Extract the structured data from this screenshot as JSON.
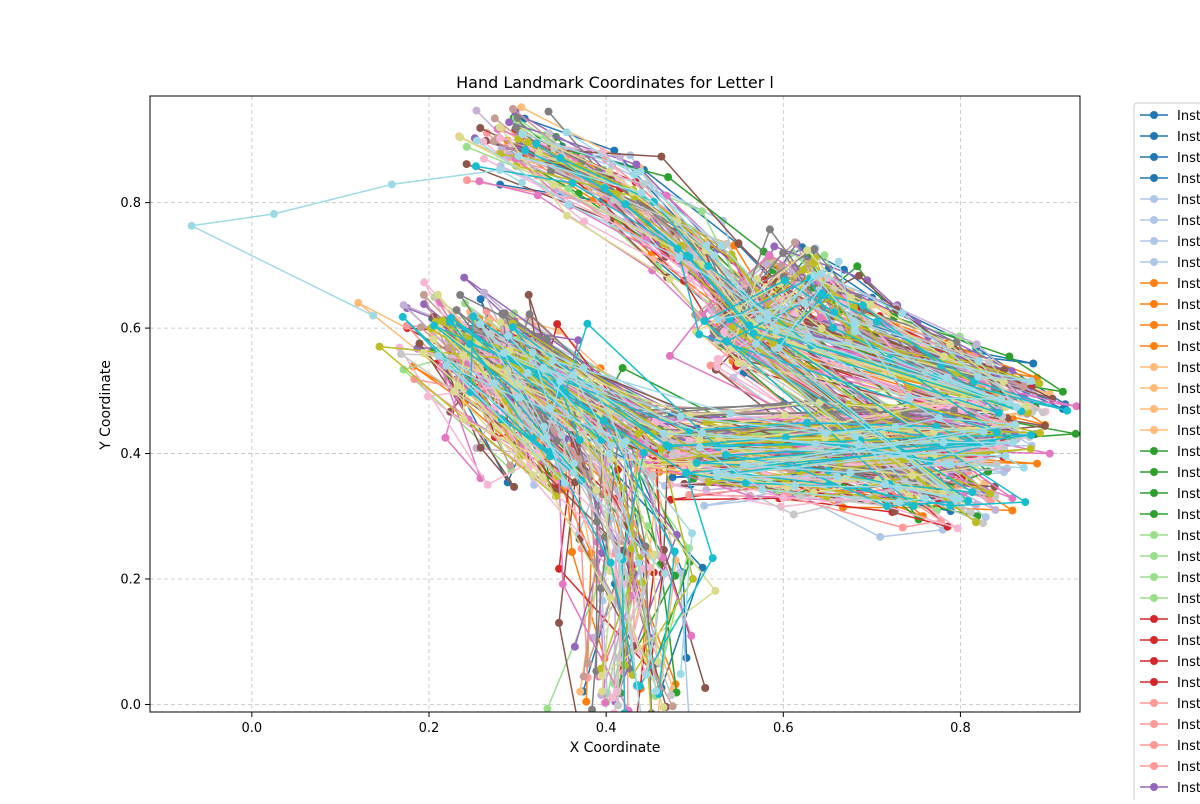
{
  "chart_data": {
    "type": "line",
    "title": "Hand Landmark Coordinates for Letter l",
    "xlabel": "X Coordinate",
    "ylabel": "Y Coordinate",
    "xlim": [
      -0.115,
      0.935
    ],
    "ylim": [
      -0.012,
      0.97
    ],
    "x_ticks": [
      0.0,
      0.2,
      0.4,
      0.6,
      0.8
    ],
    "y_ticks": [
      0.0,
      0.2,
      0.4,
      0.6,
      0.8
    ],
    "grid": true,
    "legend_placement": "outside-right",
    "legend_entry_prefix": "Inst",
    "color_cycle": [
      "#1f77b4",
      "#aec7e8",
      "#ff7f0e",
      "#ffbb78",
      "#2ca02c",
      "#98df8a",
      "#d62728",
      "#ff9896",
      "#9467bd",
      "#c5b0d5",
      "#8c564b",
      "#c49c94",
      "#e377c2",
      "#f7b6d2",
      "#7f7f7f",
      "#c7c7c7",
      "#bcbd22",
      "#dbdb8d",
      "#17becf",
      "#9edae5"
    ],
    "series_count": 80,
    "legend_visible_count": 33,
    "base_landmarks": [
      [
        0.43,
        0.04
      ],
      [
        0.43,
        0.24
      ],
      [
        0.39,
        0.42
      ],
      [
        0.3,
        0.54
      ],
      [
        0.22,
        0.6
      ],
      [
        0.35,
        0.4
      ],
      [
        0.32,
        0.5
      ],
      [
        0.29,
        0.58
      ],
      [
        0.48,
        0.43
      ],
      [
        0.65,
        0.44
      ],
      [
        0.75,
        0.44
      ],
      [
        0.84,
        0.43
      ],
      [
        0.5,
        0.4
      ],
      [
        0.63,
        0.37
      ],
      [
        0.73,
        0.36
      ],
      [
        0.8,
        0.34
      ],
      [
        0.55,
        0.6
      ],
      [
        0.62,
        0.69
      ],
      [
        0.68,
        0.62
      ],
      [
        0.78,
        0.55
      ],
      [
        0.86,
        0.49
      ],
      [
        0.58,
        0.6
      ],
      [
        0.5,
        0.73
      ],
      [
        0.4,
        0.83
      ],
      [
        0.3,
        0.9
      ]
    ],
    "outlier_series": [
      [
        [
          0.137,
          0.62
        ],
        [
          -0.068,
          0.763
        ],
        [
          0.025,
          0.782
        ],
        [
          0.158,
          0.829
        ],
        [
          0.28,
          0.852
        ],
        [
          0.305,
          0.832
        ]
      ]
    ]
  }
}
